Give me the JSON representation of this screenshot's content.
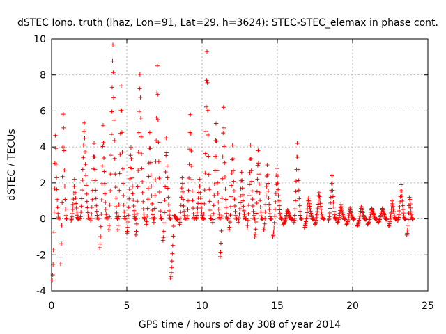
{
  "chart_data": {
    "type": "scatter",
    "title": "dSTEC Iono. truth (lhaz, Lon=91, Lat=29, h=3624): STEC-STEC_elemax in phase cont.",
    "xlabel": "GPS time / hours of day 308 of year 2014",
    "ylabel": "dSTEC  / TECUs",
    "xlim": [
      0,
      25
    ],
    "ylim": [
      -4,
      10
    ],
    "xticks": [
      0,
      5,
      10,
      15,
      20,
      25
    ],
    "yticks": [
      -4,
      -2,
      0,
      2,
      4,
      6,
      8,
      10
    ],
    "xtick_labels": [
      "0",
      "5",
      "10",
      "15",
      "20",
      "25"
    ],
    "ytick_labels": [
      "-4",
      "-2",
      "0",
      "2",
      "4",
      "6",
      "8",
      "10"
    ],
    "grid": true,
    "marker": "+",
    "color": "#ff0000",
    "arcs": [
      {
        "start": 0.05,
        "end": 0.5,
        "peak": 4.8,
        "min": -3.4
      },
      {
        "start": 0.6,
        "end": 1.0,
        "peak": 6.2,
        "min": -2.5
      },
      {
        "start": 1.3,
        "end": 1.8,
        "peak": 2.2,
        "min": -0.1
      },
      {
        "start": 1.9,
        "end": 2.5,
        "peak": 5.5,
        "min": 0.0
      },
      {
        "start": 2.6,
        "end": 3.1,
        "peak": 4.2,
        "min": -0.1
      },
      {
        "start": 3.2,
        "end": 3.7,
        "peak": 5.2,
        "min": -1.6
      },
      {
        "start": 3.8,
        "end": 4.4,
        "peak": 10.0,
        "min": -0.6
      },
      {
        "start": 4.4,
        "end": 4.9,
        "peak": 7.4,
        "min": -0.6
      },
      {
        "start": 5.0,
        "end": 5.6,
        "peak": 4.1,
        "min": -0.8
      },
      {
        "start": 5.6,
        "end": 6.2,
        "peak": 8.3,
        "min": -0.9
      },
      {
        "start": 6.3,
        "end": 6.8,
        "peak": 4.8,
        "min": -0.3
      },
      {
        "start": 6.8,
        "end": 7.3,
        "peak": 8.5,
        "min": -0.2
      },
      {
        "start": 7.4,
        "end": 7.9,
        "peak": 4.5,
        "min": -1.2
      },
      {
        "start": 7.9,
        "end": 8.4,
        "peak": 0.2,
        "min": -3.3
      },
      {
        "start": 8.5,
        "end": 8.9,
        "peak": 2.4,
        "min": -0.3
      },
      {
        "start": 9.0,
        "end": 9.5,
        "peak": 5.8,
        "min": 0.0
      },
      {
        "start": 9.6,
        "end": 10.1,
        "peak": 2.2,
        "min": 0.0
      },
      {
        "start": 10.1,
        "end": 10.6,
        "peak": 9.3,
        "min": 0.0
      },
      {
        "start": 10.7,
        "end": 11.2,
        "peak": 5.3,
        "min": -0.2
      },
      {
        "start": 11.2,
        "end": 11.7,
        "peak": 6.2,
        "min": -2.1
      },
      {
        "start": 11.8,
        "end": 12.3,
        "peak": 4.1,
        "min": -0.6
      },
      {
        "start": 12.4,
        "end": 12.9,
        "peak": 2.6,
        "min": -0.2
      },
      {
        "start": 13.0,
        "end": 13.5,
        "peak": 4.1,
        "min": -0.5
      },
      {
        "start": 13.5,
        "end": 14.0,
        "peak": 3.8,
        "min": -1.0
      },
      {
        "start": 14.1,
        "end": 14.6,
        "peak": 3.0,
        "min": -0.6
      },
      {
        "start": 14.7,
        "end": 15.3,
        "peak": 2.9,
        "min": -1.0
      },
      {
        "start": 15.4,
        "end": 16.0,
        "peak": 0.5,
        "min": -0.3
      },
      {
        "start": 16.1,
        "end": 16.6,
        "peak": 4.2,
        "min": -0.2
      },
      {
        "start": 16.8,
        "end": 17.4,
        "peak": 1.2,
        "min": -0.5
      },
      {
        "start": 17.5,
        "end": 18.1,
        "peak": 1.5,
        "min": -0.3
      },
      {
        "start": 18.4,
        "end": 18.9,
        "peak": 2.4,
        "min": -0.1
      },
      {
        "start": 19.0,
        "end": 19.5,
        "peak": 0.8,
        "min": -0.2
      },
      {
        "start": 19.6,
        "end": 20.1,
        "peak": 0.6,
        "min": -0.3
      },
      {
        "start": 20.3,
        "end": 20.9,
        "peak": 0.7,
        "min": -0.4
      },
      {
        "start": 21.0,
        "end": 21.6,
        "peak": 0.6,
        "min": -0.3
      },
      {
        "start": 21.7,
        "end": 22.3,
        "peak": 0.6,
        "min": -0.2
      },
      {
        "start": 22.4,
        "end": 22.9,
        "peak": 1.0,
        "min": -0.4
      },
      {
        "start": 23.0,
        "end": 23.5,
        "peak": 1.9,
        "min": -0.1
      },
      {
        "start": 23.6,
        "end": 24.0,
        "peak": 1.3,
        "min": -0.9
      }
    ]
  }
}
